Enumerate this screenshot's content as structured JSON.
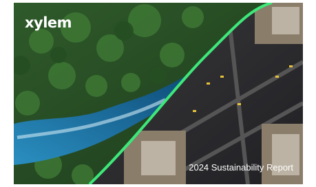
{
  "brand": "xylem",
  "title": "2024 Sustainability Report"
}
